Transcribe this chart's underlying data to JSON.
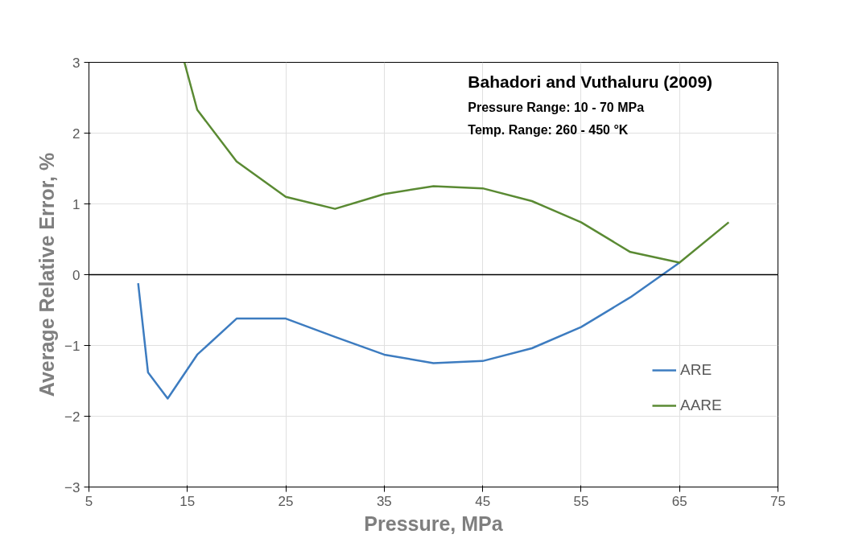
{
  "chart_data": {
    "type": "line",
    "xlabel": "Pressure, MPa",
    "ylabel": "Average Relative Error, %",
    "xlim": [
      5,
      75
    ],
    "xticks": [
      5,
      15,
      25,
      35,
      45,
      55,
      65,
      75
    ],
    "ylim": [
      -3,
      3
    ],
    "yticks": [
      -3,
      -2,
      -1,
      0,
      1,
      2,
      3
    ],
    "grid": true,
    "legend": "right",
    "line_style": "solid",
    "marker": "none",
    "ref_lines": [
      {
        "axis": "y",
        "value": 0,
        "color": "#000000"
      }
    ],
    "annotations": [
      "Bahadori and Vuthaluru (2009)",
      "Pressure Range: 10 - 70 MPa",
      "Temp. Range: 260 - 450 °K"
    ],
    "series": [
      {
        "name": "ARE",
        "color": "#3d7cc0",
        "x": [
          10,
          11,
          13,
          16,
          20,
          25,
          30,
          35,
          40,
          45,
          50,
          55,
          60,
          65
        ],
        "values": [
          -0.12,
          -1.38,
          -1.75,
          -1.13,
          -0.62,
          -0.62,
          -0.88,
          -1.13,
          -1.25,
          -1.22,
          -1.04,
          -0.74,
          -0.32,
          0.17
        ]
      },
      {
        "name": "AARE",
        "color": "#5a8a33",
        "x": [
          14.7,
          16,
          20,
          25,
          30,
          35,
          40,
          45,
          50,
          55,
          60,
          65,
          70
        ],
        "values": [
          3,
          2.33,
          1.6,
          1.1,
          0.93,
          1.14,
          1.25,
          1.22,
          1.04,
          0.74,
          0.32,
          0.17,
          0.74
        ]
      }
    ]
  }
}
